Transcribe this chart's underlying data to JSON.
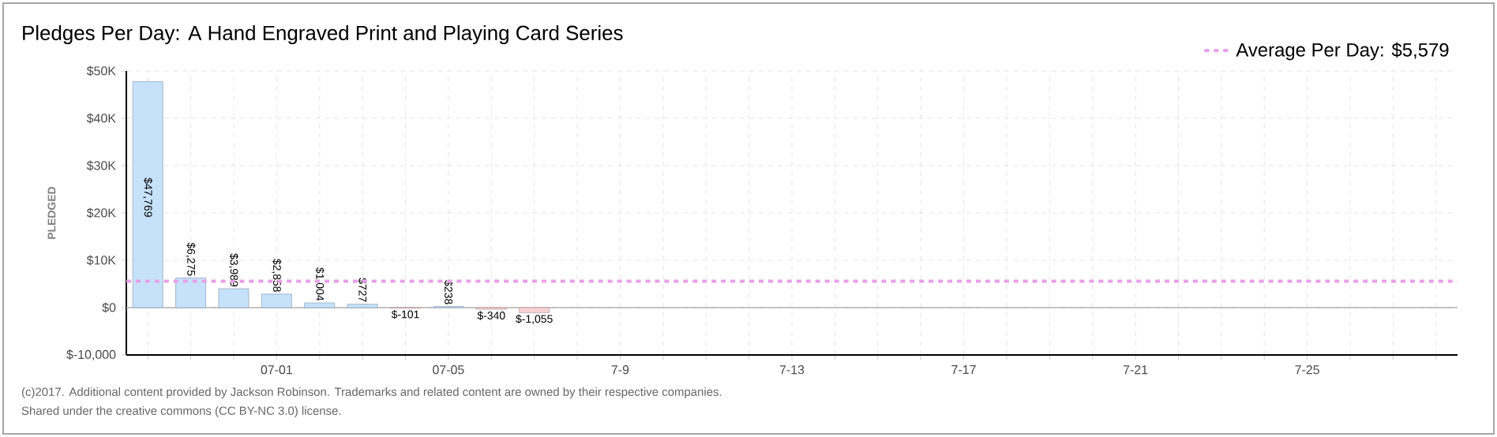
{
  "chart_data": {
    "type": "bar",
    "title": "Pledges Per Day: A Hand Engraved Print and Playing Card Series",
    "ylabel": "PLEDGED",
    "categories": [
      null,
      null,
      null,
      "07-01",
      null,
      null,
      null,
      "07-05",
      null,
      null,
      null,
      "7-9",
      null,
      null,
      null,
      "7-13",
      null,
      null,
      null,
      "7-17",
      null,
      null,
      null,
      "7-21",
      null,
      null,
      null,
      "7-25",
      null,
      null,
      null
    ],
    "values": [
      47769,
      6275,
      3989,
      2858,
      1004,
      727,
      -101,
      238,
      -340,
      -1055,
      null,
      null,
      null,
      null,
      null,
      null,
      null,
      null,
      null,
      null,
      null,
      null,
      null,
      null,
      null,
      null,
      null,
      null,
      null,
      null,
      null
    ],
    "value_labels": [
      "$47,769",
      "$6,275",
      "$3,989",
      "$2,858",
      "$1,004",
      "$727",
      "$-101",
      "$238",
      "$-340",
      "$-1,055",
      null,
      null,
      null,
      null,
      null,
      null,
      null,
      null,
      null,
      null,
      null,
      null,
      null,
      null,
      null,
      null,
      null,
      null,
      null,
      null,
      null
    ],
    "colors": [
      "#c6e2fa",
      "#c6e2fa",
      "#c6e2fa",
      "#c6e2fa",
      "#c6e2fa",
      "#c6e2fa",
      "#f9d3d3",
      "#c6e2fa",
      "#f9d3d3",
      "#f9d3d3",
      null,
      null,
      null,
      null,
      null,
      null,
      null,
      null,
      null,
      null,
      null,
      null,
      null,
      null,
      null,
      null,
      null,
      null,
      null,
      null,
      null
    ],
    "ylim": [
      -10000,
      50000
    ],
    "yticks": [
      {
        "value": -10000,
        "label": "$-10,000"
      },
      {
        "value": 0,
        "label": "$0"
      },
      {
        "value": 10000,
        "label": "$10K"
      },
      {
        "value": 20000,
        "label": "$20K"
      },
      {
        "value": 30000,
        "label": "$30K"
      },
      {
        "value": 40000,
        "label": "$40K"
      },
      {
        "value": 50000,
        "label": "$50K"
      }
    ],
    "ref_lines": [
      {
        "axis": "y",
        "value": 5579,
        "label": "Average Per Day: $5,579",
        "color": "#e8a0e8",
        "line_style": "dashed"
      }
    ],
    "grid": true,
    "legend": "top right",
    "annotations": [
      "(c)2017. Additional content provided by Jackson Robinson. Trademarks and related content are owned by their respective companies.",
      "Shared under the creative commons (CC BY-NC 3.0) license."
    ]
  }
}
